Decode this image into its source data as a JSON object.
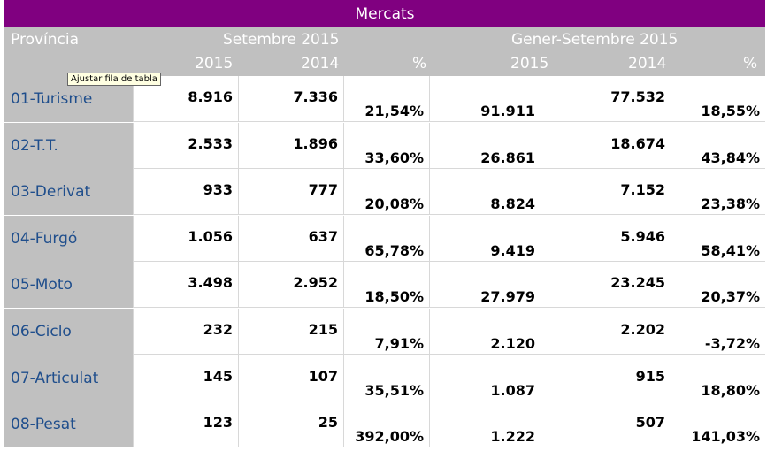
{
  "title": "Mercats",
  "header": {
    "province_label": "Província",
    "group1": "Setembre 2015",
    "group2": "Gener-Setembre 2015",
    "col_2015": "2015",
    "col_2014": "2014",
    "col_pct": "%"
  },
  "tooltip": "Ajustar fila de tabla",
  "rows": [
    {
      "label": "01-Turisme",
      "s2015": "8.916",
      "s2014": "7.336",
      "spct": "21,54%",
      "g2015": "91.911",
      "g2014": "77.532",
      "gpct": "18,55%"
    },
    {
      "label": "02-T.T.",
      "s2015": "2.533",
      "s2014": "1.896",
      "spct": "33,60%",
      "g2015": "26.861",
      "g2014": "18.674",
      "gpct": "43,84%"
    },
    {
      "label": "03-Derivat",
      "s2015": "933",
      "s2014": "777",
      "spct": "20,08%",
      "g2015": "8.824",
      "g2014": "7.152",
      "gpct": "23,38%"
    },
    {
      "label": "04-Furgó",
      "s2015": "1.056",
      "s2014": "637",
      "spct": "65,78%",
      "g2015": "9.419",
      "g2014": "5.946",
      "gpct": "58,41%"
    },
    {
      "label": "05-Moto",
      "s2015": "3.498",
      "s2014": "2.952",
      "spct": "18,50%",
      "g2015": "27.979",
      "g2014": "23.245",
      "gpct": "20,37%"
    },
    {
      "label": "06-Ciclo",
      "s2015": "232",
      "s2014": "215",
      "spct": "7,91%",
      "g2015": "2.120",
      "g2014": "2.202",
      "gpct": "-3,72%"
    },
    {
      "label": "07-Articulat",
      "s2015": "145",
      "s2014": "107",
      "spct": "35,51%",
      "g2015": "1.087",
      "g2014": "915",
      "gpct": "18,80%"
    },
    {
      "label": "08-Pesat",
      "s2015": "123",
      "s2014": "25",
      "spct": "392,00%",
      "g2015": "1.222",
      "g2014": "507",
      "gpct": "141,03%"
    }
  ]
}
